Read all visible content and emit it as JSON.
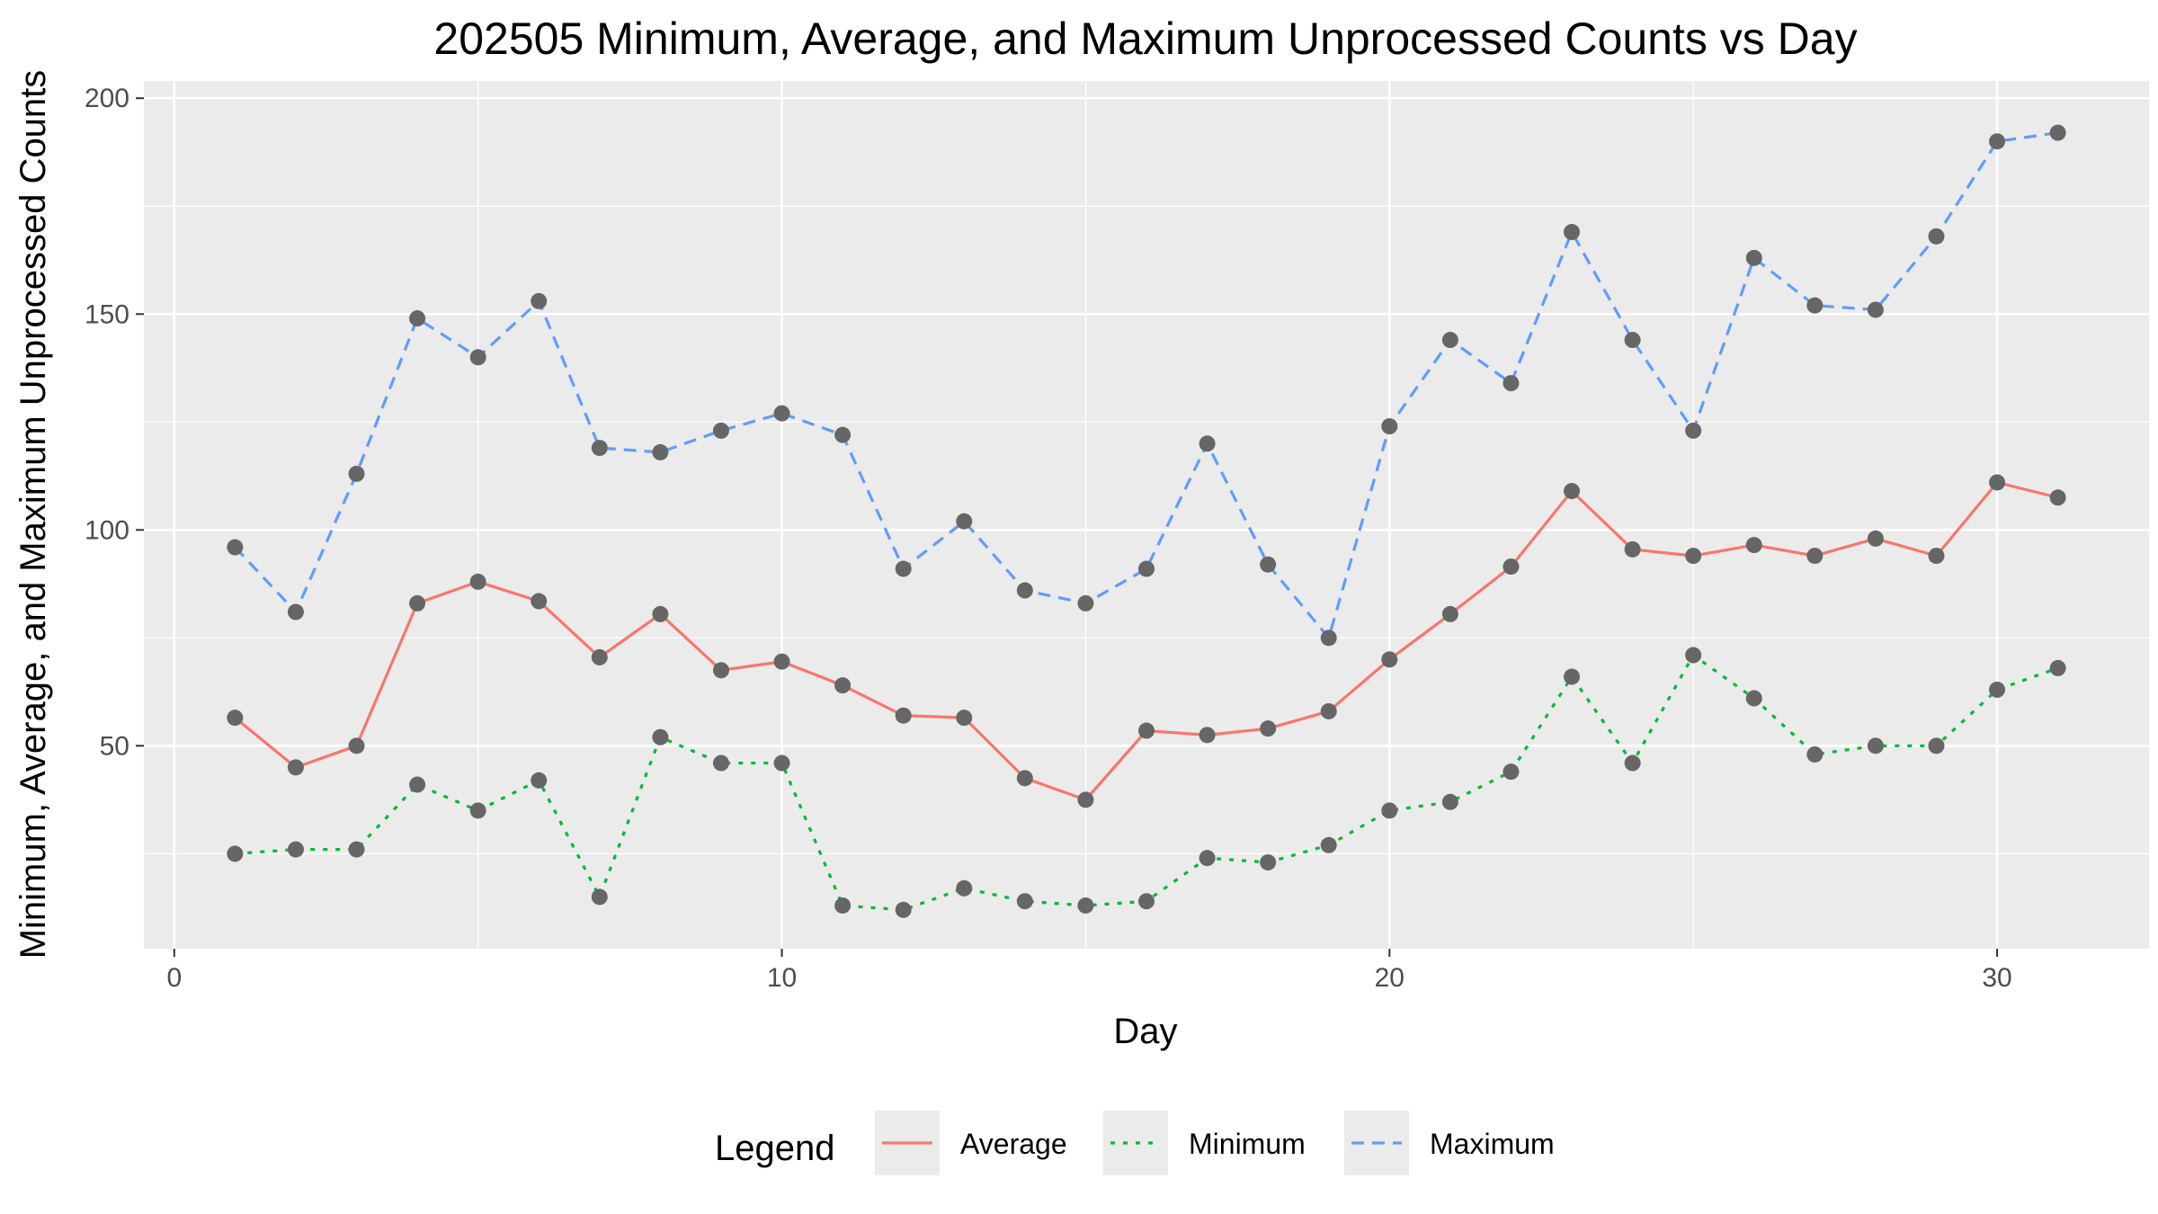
{
  "chart_data": {
    "type": "line",
    "title": "202505 Minimum, Average, and Maximum Unprocessed Counts vs Day",
    "xlabel": "Day",
    "ylabel": "Minimum, Average, and Maximum Unprocessed Counts",
    "xlim": [
      -0.5,
      32.5
    ],
    "ylim": [
      3,
      204
    ],
    "x_ticks": [
      0,
      10,
      20,
      30
    ],
    "y_ticks": [
      50,
      100,
      150,
      200
    ],
    "x_tick_labels": [
      "0",
      "10",
      "20",
      "30"
    ],
    "y_tick_labels": [
      "50",
      "100",
      "150",
      "200"
    ],
    "grid": true,
    "legend": {
      "title": "Legend",
      "position": "bottom"
    },
    "x": [
      1,
      2,
      3,
      4,
      5,
      6,
      7,
      8,
      9,
      10,
      11,
      12,
      13,
      14,
      15,
      16,
      17,
      18,
      19,
      20,
      21,
      22,
      23,
      24,
      25,
      26,
      27,
      28,
      29,
      30,
      31
    ],
    "series": [
      {
        "name": "Average",
        "color": "#F8766D",
        "dash": "solid",
        "values": [
          56.5,
          45,
          50,
          83,
          88,
          83.5,
          70.5,
          80.5,
          67.5,
          69.5,
          64,
          57,
          56.5,
          42.5,
          37.5,
          53.5,
          52.5,
          54,
          58,
          70,
          80.5,
          91.5,
          109,
          95.5,
          94,
          96.5,
          94,
          98,
          94,
          111,
          107.5
        ]
      },
      {
        "name": "Minimum",
        "color": "#00BA38",
        "dash": "dotted",
        "values": [
          25,
          26,
          26,
          41,
          35,
          42,
          15,
          52,
          46,
          46,
          13,
          12,
          17,
          14,
          13,
          14,
          24,
          23,
          27,
          35,
          37,
          44,
          66,
          46,
          71,
          61,
          48,
          50,
          50,
          63,
          68
        ]
      },
      {
        "name": "Maximum",
        "color": "#619CFF",
        "dash": "dashed",
        "values": [
          96,
          81,
          113,
          149,
          140,
          153,
          119,
          118,
          123,
          127,
          122,
          91,
          102,
          86,
          83,
          91,
          120,
          92,
          75,
          124,
          144,
          134,
          169,
          144,
          123,
          163,
          152,
          151,
          168,
          190,
          192
        ]
      }
    ],
    "point_color": "#666666"
  }
}
